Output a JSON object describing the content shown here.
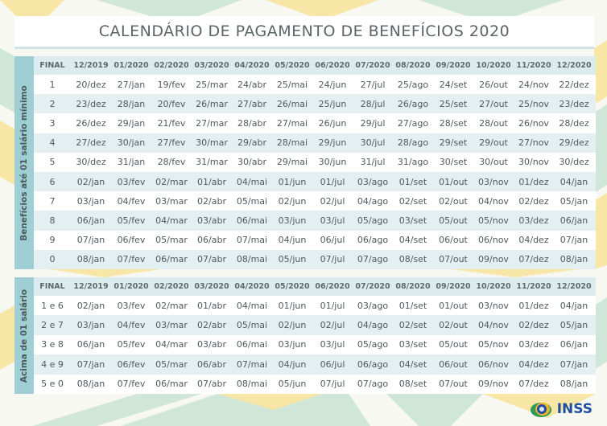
{
  "title": "CALENDÁRIO DE PAGAMENTO DE BENEFÍCIOS 2020",
  "colors": {
    "teal": "#9fcfd4",
    "row_alt": "#e3eff1",
    "header": "#dcecee",
    "green_chevron": "#cfe6d8",
    "yellow_chevron": "#f8e6a6",
    "logo_blue": "#1f4f9c",
    "logo_yellow": "#f2b430"
  },
  "columns": [
    "FINAL",
    "12/2019",
    "01/2020",
    "02/2020",
    "03/2020",
    "04/2020",
    "05/2020",
    "06/2020",
    "07/2020",
    "08/2020",
    "09/2020",
    "10/2020",
    "11/2020",
    "12/2020"
  ],
  "table1": {
    "label": "Benefícios até 01 salário mínimo",
    "rows": [
      [
        "1",
        "20/dez",
        "27/jan",
        "19/fev",
        "25/mar",
        "24/abr",
        "25/mai",
        "24/jun",
        "27/jul",
        "25/ago",
        "24/set",
        "26/out",
        "24/nov",
        "22/dez"
      ],
      [
        "2",
        "23/dez",
        "28/jan",
        "20/fev",
        "26/mar",
        "27/abr",
        "26/mai",
        "25/jun",
        "28/jul",
        "26/ago",
        "25/set",
        "27/out",
        "25/nov",
        "23/dez"
      ],
      [
        "3",
        "26/dez",
        "29/jan",
        "21/fev",
        "27/mar",
        "28/abr",
        "27/mai",
        "26/jun",
        "29/jul",
        "27/ago",
        "28/set",
        "28/out",
        "26/nov",
        "28/dez"
      ],
      [
        "4",
        "27/dez",
        "30/jan",
        "27/fev",
        "30/mar",
        "29/abr",
        "28/mai",
        "29/jun",
        "30/jul",
        "28/ago",
        "29/set",
        "29/out",
        "27/nov",
        "29/dez"
      ],
      [
        "5",
        "30/dez",
        "31/jan",
        "28/fev",
        "31/mar",
        "30/abr",
        "29/mai",
        "30/jun",
        "31/jul",
        "31/ago",
        "30/set",
        "30/out",
        "30/nov",
        "30/dez"
      ],
      [
        "6",
        "02/jan",
        "03/fev",
        "02/mar",
        "01/abr",
        "04/mai",
        "01/jun",
        "01/jul",
        "03/ago",
        "01/set",
        "01/out",
        "03/nov",
        "01/dez",
        "04/jan"
      ],
      [
        "7",
        "03/jan",
        "04/fev",
        "03/mar",
        "02/abr",
        "05/mai",
        "02/jun",
        "02/jul",
        "04/ago",
        "02/set",
        "02/out",
        "04/nov",
        "02/dez",
        "05/jan"
      ],
      [
        "8",
        "06/jan",
        "05/fev",
        "04/mar",
        "03/abr",
        "06/mai",
        "03/jun",
        "03/jul",
        "05/ago",
        "03/set",
        "05/out",
        "05/nov",
        "03/dez",
        "06/jan"
      ],
      [
        "9",
        "07/jan",
        "06/fev",
        "05/mar",
        "06/abr",
        "07/mai",
        "04/jun",
        "06/jul",
        "06/ago",
        "04/set",
        "06/out",
        "06/nov",
        "04/dez",
        "07/jan"
      ],
      [
        "0",
        "08/jan",
        "07/fev",
        "06/mar",
        "07/abr",
        "08/mai",
        "05/jun",
        "07/jul",
        "07/ago",
        "08/set",
        "07/out",
        "09/nov",
        "07/dez",
        "08/jan"
      ]
    ]
  },
  "table2": {
    "label": "Acima de 01 salário",
    "rows": [
      [
        "1 e 6",
        "02/jan",
        "03/fev",
        "02/mar",
        "01/abr",
        "04/mai",
        "01/jun",
        "01/jul",
        "03/ago",
        "01/set",
        "01/out",
        "03/nov",
        "01/dez",
        "04/jan"
      ],
      [
        "2 e 7",
        "03/jan",
        "04/fev",
        "03/mar",
        "02/abr",
        "05/mai",
        "02/jun",
        "02/jul",
        "04/ago",
        "02/set",
        "02/out",
        "04/nov",
        "02/dez",
        "05/jan"
      ],
      [
        "3 e 8",
        "06/jan",
        "05/fev",
        "04/mar",
        "03/abr",
        "06/mai",
        "03/jun",
        "03/jul",
        "05/ago",
        "03/set",
        "05/out",
        "05/nov",
        "03/dez",
        "06/jan"
      ],
      [
        "4 e 9",
        "07/jan",
        "06/fev",
        "05/mar",
        "06/abr",
        "07/mai",
        "04/jun",
        "06/jul",
        "06/ago",
        "04/set",
        "06/out",
        "06/nov",
        "04/dez",
        "07/jan"
      ],
      [
        "5 e 0",
        "08/jan",
        "07/fev",
        "06/mar",
        "07/abr",
        "08/mai",
        "05/jun",
        "07/jul",
        "07/ago",
        "08/set",
        "07/out",
        "09/nov",
        "07/dez",
        "08/jan"
      ]
    ]
  },
  "logo": {
    "text": "INSS",
    "icon": "inss-globe-icon"
  }
}
